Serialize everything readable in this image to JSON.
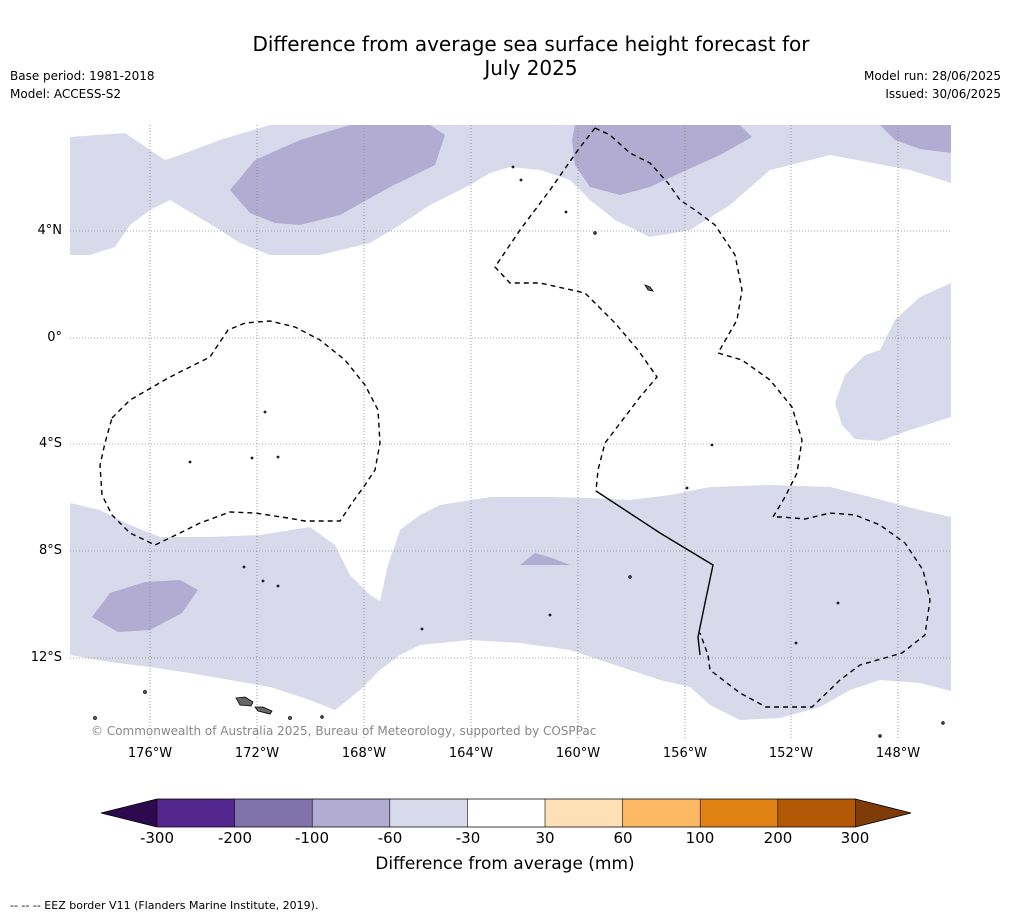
{
  "header": {
    "title_line1": "Difference from average sea surface height forecast for",
    "title_line2": "July 2025",
    "base_period": "Base period: 1981-2018",
    "model": "Model: ACCESS-S2",
    "model_run": "Model run: 28/06/2025",
    "issued": "Issued: 30/06/2025"
  },
  "map": {
    "copyright": "© Commonwealth of Australia 2025, Bureau of Meteorology, supported by COSPPac",
    "lat_labels": [
      "4°N",
      "0°",
      "4°S",
      "8°S",
      "12°S"
    ],
    "lon_labels": [
      "176°W",
      "172°W",
      "168°W",
      "164°W",
      "160°W",
      "156°W",
      "152°W",
      "148°W"
    ]
  },
  "colorbar": {
    "title": "Difference from average (mm)",
    "ticks": [
      "-300",
      "-200",
      "-100",
      "-60",
      "-30",
      "30",
      "60",
      "100",
      "200",
      "300"
    ],
    "colors": {
      "below_min": "#2d0a4e",
      "neg_300_200": "#54278f",
      "neg_200_100": "#8073ac",
      "neg_100_60": "#b2abd2",
      "neg_60_30": "#d8daeb",
      "neutral": "#ffffff",
      "pos_30_60": "#fee0b6",
      "pos_60_100": "#fdb863",
      "pos_100_200": "#e08214",
      "pos_200_300": "#b35806",
      "above_max": "#7f3b08"
    }
  },
  "footnote": "--  --  -- EEZ border V11 (Flanders Marine Institute, 2019)."
}
